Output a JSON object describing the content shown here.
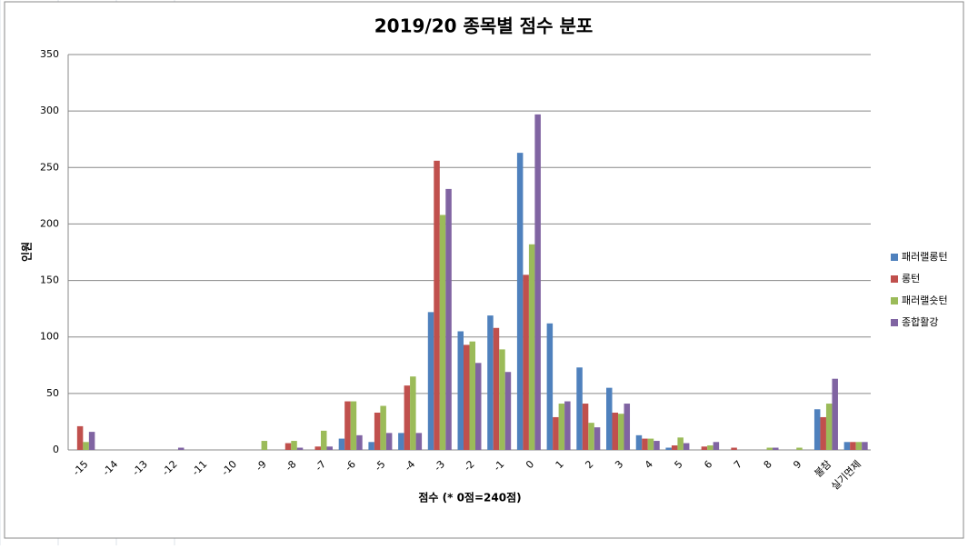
{
  "chart_data": {
    "type": "bar",
    "title": "2019/20 종목별 점수 분포",
    "x_label": "점수 (* 0점=240점)",
    "y_label": "인원",
    "categories": [
      "-15",
      "-14",
      "-13",
      "-12",
      "-11",
      "-10",
      "-9",
      "-8",
      "-7",
      "-6",
      "-5",
      "-4",
      "-3",
      "-2",
      "-1",
      "0",
      "1",
      "2",
      "3",
      "4",
      "5",
      "6",
      "7",
      "8",
      "9",
      "불참",
      "실기면제"
    ],
    "series": [
      {
        "name": "패러랠롱턴",
        "color": "#4f81bd",
        "values": [
          0,
          0,
          0,
          0,
          0,
          0,
          0,
          0,
          0,
          10,
          7,
          15,
          122,
          105,
          119,
          263,
          112,
          73,
          55,
          13,
          2,
          0,
          0,
          0,
          0,
          36,
          7
        ]
      },
      {
        "name": "롱턴",
        "color": "#c0504d",
        "values": [
          21,
          0,
          0,
          0,
          0,
          0,
          0,
          6,
          3,
          43,
          33,
          57,
          256,
          93,
          108,
          155,
          29,
          41,
          33,
          10,
          4,
          3,
          2,
          0,
          0,
          29,
          7
        ]
      },
      {
        "name": "패러랠숏턴",
        "color": "#9bbb59",
        "values": [
          7,
          0,
          0,
          0,
          0,
          0,
          8,
          8,
          17,
          43,
          39,
          65,
          208,
          96,
          89,
          182,
          41,
          24,
          32,
          10,
          11,
          4,
          0,
          2,
          2,
          41,
          7
        ]
      },
      {
        "name": "종합활강",
        "color": "#8064a2",
        "values": [
          16,
          0,
          0,
          2,
          0,
          0,
          0,
          2,
          3,
          13,
          15,
          15,
          231,
          77,
          69,
          297,
          43,
          20,
          41,
          8,
          6,
          7,
          0,
          2,
          0,
          63,
          7
        ]
      }
    ],
    "ylim": [
      0,
      350
    ],
    "yticks": [
      0,
      50,
      100,
      150,
      200,
      250,
      300,
      350
    ],
    "grid": true,
    "legend": "right"
  }
}
